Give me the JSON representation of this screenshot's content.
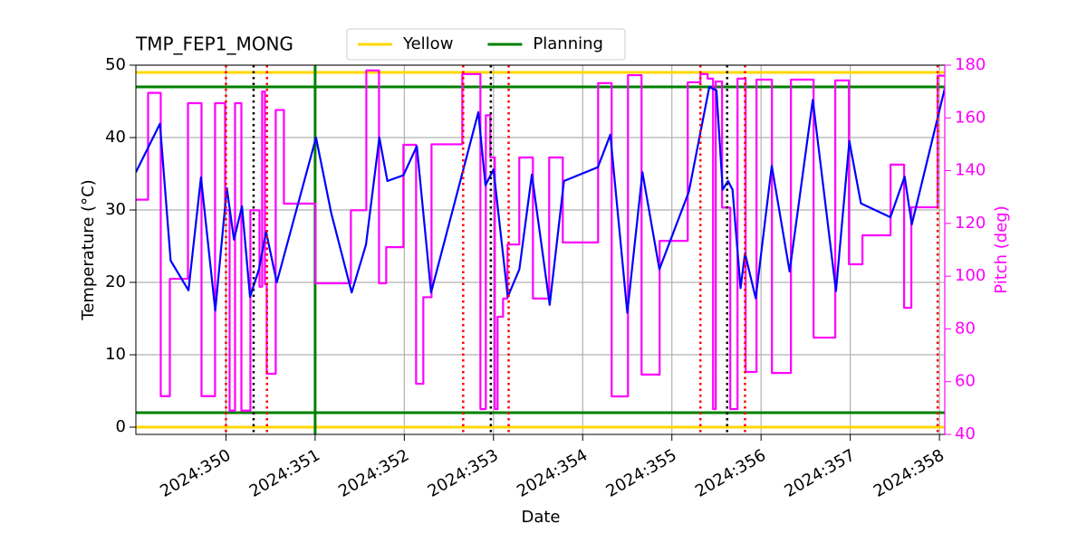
{
  "chart_data": {
    "type": "line",
    "title": "TMP_FEP1_MONG",
    "xlabel": "Date",
    "ylabel": "Temperature (°C)",
    "y2label": "Pitch (deg)",
    "xlim": [
      348.99,
      358.06
    ],
    "xticks": [
      {
        "value": 350,
        "label": "2024:350"
      },
      {
        "value": 351,
        "label": "2024:351"
      },
      {
        "value": 352,
        "label": "2024:352"
      },
      {
        "value": 353,
        "label": "2024:353"
      },
      {
        "value": 354,
        "label": "2024:354"
      },
      {
        "value": 355,
        "label": "2024:355"
      },
      {
        "value": 356,
        "label": "2024:356"
      },
      {
        "value": 357,
        "label": "2024:357"
      },
      {
        "value": 358,
        "label": "2024:358"
      }
    ],
    "ylim": [
      -1,
      50
    ],
    "yticks": [
      0,
      10,
      20,
      30,
      40,
      50
    ],
    "y2lim": [
      40,
      180
    ],
    "y2ticks": [
      40,
      60,
      80,
      100,
      120,
      140,
      160,
      180
    ],
    "y2color": "#ff00ff",
    "grid": true,
    "legend": "upper center",
    "series": [
      {
        "color": "#0000ff",
        "x": [
          348.99,
          349.26,
          349.38,
          349.58,
          349.72,
          349.88,
          350.01,
          350.09,
          350.18,
          350.27,
          350.37,
          350.45,
          350.57,
          351.01,
          351.18,
          351.41,
          351.57,
          351.72,
          351.81,
          351.99,
          352.14,
          352.3,
          352.83,
          352.91,
          353.0,
          353.16,
          353.29,
          353.43,
          353.63,
          353.79,
          354.17,
          354.31,
          354.5,
          354.67,
          354.86,
          355.19,
          355.42,
          355.5,
          355.57,
          355.63,
          355.68,
          355.77,
          355.82,
          355.94,
          356.12,
          356.32,
          356.58,
          356.84,
          356.99,
          357.12,
          357.45,
          357.61,
          357.69,
          358.06
        ],
        "values": [
          35.2,
          41.9,
          23,
          18.9,
          34.5,
          16.1,
          33,
          25.9,
          30.5,
          18,
          21.8,
          27,
          20,
          40,
          29.6,
          18.6,
          25.2,
          40,
          34,
          34.8,
          38.8,
          18.6,
          43.5,
          33.4,
          35.6,
          18,
          21.8,
          34.9,
          16.9,
          34,
          35.9,
          40.4,
          15.8,
          35.2,
          21.8,
          32.5,
          47,
          46.5,
          32.8,
          34,
          32.8,
          19.2,
          24,
          17.8,
          36.1,
          21.5,
          45.2,
          18.8,
          39.5,
          30.9,
          29,
          34.6,
          28,
          46.8
        ]
      },
      {
        "color": "#ff00ff",
        "axis": "y2",
        "x": [
          348.99,
          349.127,
          349.127,
          349.269,
          349.269,
          349.371,
          349.371,
          349.574,
          349.574,
          349.726,
          349.726,
          349.878,
          349.878,
          349.99,
          349.99,
          350.041,
          350.041,
          350.102,
          350.102,
          350.173,
          350.173,
          350.274,
          350.274,
          350.376,
          350.376,
          350.406,
          350.406,
          350.437,
          350.437,
          350.457,
          350.457,
          350.558,
          350.558,
          350.65,
          350.65,
          351.005,
          351.005,
          351.401,
          351.401,
          351.574,
          351.574,
          351.716,
          351.716,
          351.797,
          351.797,
          351.99,
          351.99,
          352.132,
          352.132,
          352.213,
          352.213,
          352.305,
          352.305,
          352.65,
          352.65,
          352.853,
          352.853,
          352.914,
          352.914,
          352.964,
          352.964,
          353.015,
          353.015,
          353.046,
          353.046,
          353.107,
          353.107,
          353.157,
          353.157,
          353.289,
          353.289,
          353.442,
          353.442,
          353.624,
          353.624,
          353.777,
          353.777,
          354.173,
          354.173,
          354.325,
          354.325,
          354.508,
          354.508,
          354.66,
          354.66,
          354.863,
          354.863,
          355.178,
          355.178,
          355.32,
          355.32,
          355.401,
          355.401,
          355.462,
          355.462,
          355.492,
          355.492,
          355.563,
          355.563,
          355.655,
          355.655,
          355.736,
          355.736,
          355.827,
          355.827,
          355.949,
          355.949,
          356.122,
          356.122,
          356.335,
          356.335,
          356.589,
          356.589,
          356.832,
          356.832,
          356.985,
          356.985,
          357.137,
          357.137,
          357.452,
          357.452,
          357.604,
          357.604,
          357.685,
          357.685,
          357.98,
          357.98,
          358.06
        ],
        "values": [
          129,
          129,
          169.5,
          169.5,
          54.5,
          54.5,
          99,
          99,
          165.6,
          165.6,
          54.5,
          54.5,
          165.6,
          165.6,
          125,
          125,
          49,
          49,
          165.6,
          165.6,
          49,
          49,
          125,
          125,
          96,
          96,
          170,
          170,
          97,
          97,
          63,
          63,
          163,
          163,
          127.5,
          127.5,
          97.3,
          97.3,
          125,
          125,
          178,
          178,
          97.3,
          97.3,
          111,
          111,
          149.8,
          149.8,
          59.2,
          59.2,
          92,
          92,
          150,
          150,
          176.6,
          176.6,
          49.6,
          49.6,
          161,
          161,
          145,
          145,
          49.6,
          49.6,
          84.6,
          84.6,
          91.5,
          91.5,
          112,
          112,
          145,
          145,
          91.5,
          91.5,
          145,
          145,
          112.8,
          112.8,
          173.2,
          173.2,
          54.4,
          54.4,
          176.2,
          176.2,
          62.7,
          62.7,
          113.4,
          113.4,
          173.5,
          173.5,
          176.6,
          176.6,
          174.9,
          174.9,
          49.6,
          49.6,
          173.8,
          173.8,
          126,
          126,
          49.6,
          49.6,
          174.9,
          174.9,
          63.7,
          63.7,
          174.5,
          174.5,
          63.3,
          63.3,
          174.5,
          174.5,
          76.7,
          76.7,
          174.2,
          174.2,
          104.5,
          104.5,
          115.5,
          115.5,
          142.3,
          142.3,
          88,
          88,
          126.1,
          126.1,
          176,
          176
        ]
      }
    ],
    "limit_lines": [
      {
        "name": "Yellow",
        "color": "#ffd700",
        "values": [
          0,
          49
        ]
      },
      {
        "name": "Planning",
        "color": "#008000",
        "values": [
          2,
          47
        ],
        "x": [
          351
        ]
      }
    ],
    "vlines": [
      {
        "color": "#ff0000",
        "x": [
          350.0,
          350.46,
          352.66,
          353.17,
          355.32,
          355.82,
          357.98
        ]
      },
      {
        "color": "#000000",
        "x": [
          350.31,
          352.97,
          355.62
        ]
      }
    ]
  }
}
